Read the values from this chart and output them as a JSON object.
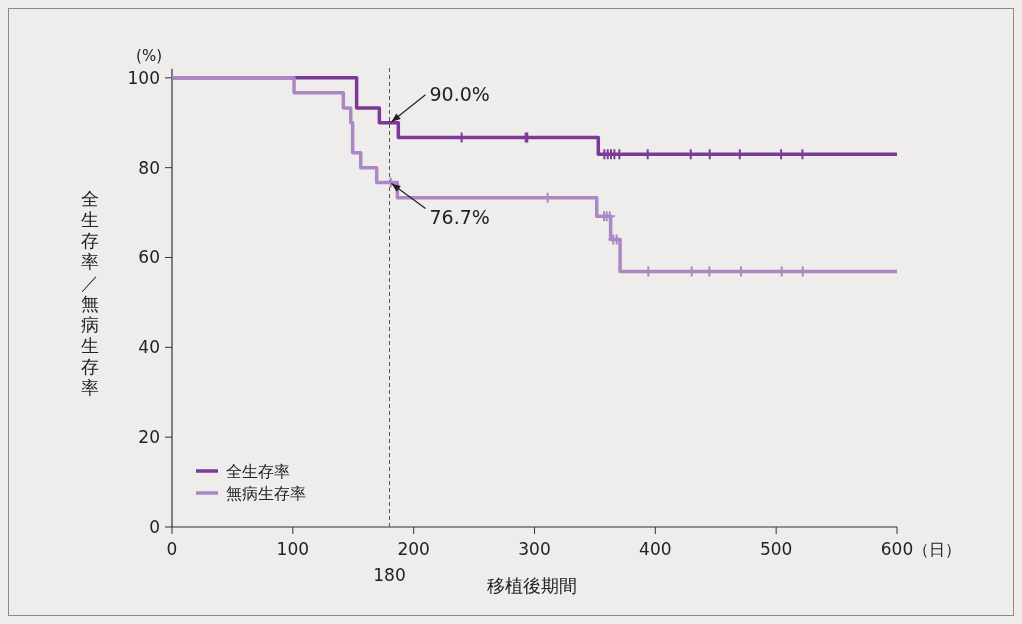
{
  "chart_data": {
    "type": "step",
    "xlabel": "移植後期間",
    "ylabel": "全生存率／無病生存率",
    "xlim": [
      0,
      600
    ],
    "xticks": [
      0,
      100,
      200,
      300,
      400,
      500,
      600
    ],
    "ylim": [
      0,
      102
    ],
    "yticks": [
      0,
      20,
      40,
      60,
      80,
      100
    ],
    "grid": false,
    "legend": "bottom left",
    "series": [
      {
        "name": "全生存率",
        "color": "#7b3a96",
        "x": [
          0,
          152.8,
          171.6,
          187.3,
          352.8,
          600
        ],
        "values": [
          100,
          93.3,
          90.0,
          86.7,
          83.0,
          83.0
        ]
      },
      {
        "name": "無病生存率",
        "color": "#ab88c4",
        "x": [
          0,
          101,
          141.8,
          147.9,
          149.5,
          156.2,
          169.4,
          186.5,
          351.5,
          363,
          370.8,
          600
        ],
        "values": [
          100,
          96.7,
          93.3,
          90.0,
          83.3,
          80.0,
          76.7,
          73.3,
          69.2,
          64.0,
          56.9,
          56.9
        ]
      },
      {
        "type": "scatter",
        "marker": "cross",
        "color": "#7b3a96",
        "x": [
          239.7,
          292.7,
          294,
          357.8,
          360.6,
          363.3,
          366.1,
          370.2,
          393.7,
          429.3,
          445,
          469.9,
          504.1,
          521.7
        ],
        "values": [
          86.7,
          86.7,
          86.7,
          83.0,
          83.0,
          83.0,
          83.0,
          83.0,
          83.0,
          83.0,
          83.0,
          83.0,
          83.0,
          83.0
        ]
      },
      {
        "type": "scatter",
        "marker": "cross",
        "color": "#ab88c4",
        "x": [
          181,
          310.9,
          357.5,
          359.7,
          362.3,
          365.2,
          368,
          394.2,
          430.1,
          444.7,
          470.9,
          504.6,
          522
        ],
        "values": [
          76.7,
          73.3,
          69.2,
          69.2,
          69.2,
          64.0,
          64.0,
          56.9,
          56.9,
          56.9,
          56.9,
          56.9,
          56.9
        ]
      }
    ],
    "ref_lines": [
      {
        "axis": "x",
        "value": 180,
        "label": "180",
        "color": "#555555",
        "line_style": "dashed"
      }
    ],
    "annotations": [
      "(%)",
      "（日）",
      {
        "text": "90.0%",
        "x": 180,
        "y": 90.0
      },
      {
        "text": "76.7%",
        "x": 180,
        "y": 76.7
      }
    ]
  }
}
